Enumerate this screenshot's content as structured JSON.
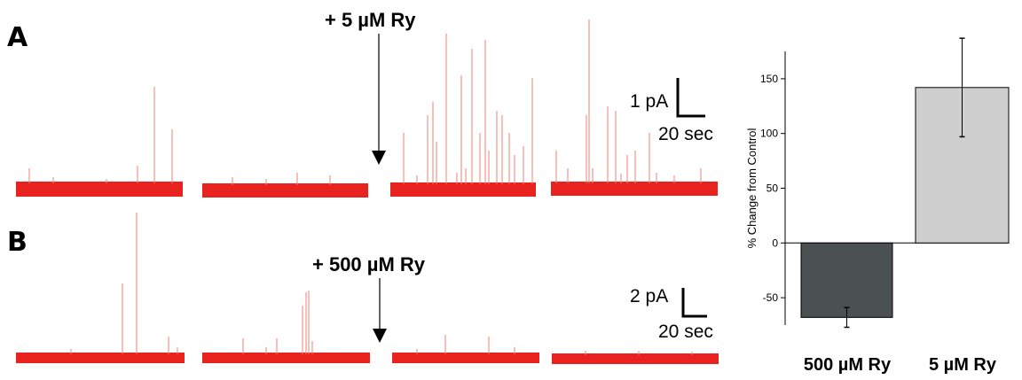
{
  "panels": {
    "a": {
      "letter": "A",
      "treatment_label": "+ 5 µM Ry",
      "scale_current": "1 pA",
      "scale_time": "20 sec"
    },
    "b": {
      "letter": "B",
      "treatment_label": "+ 500 µM Ry",
      "scale_current": "2 pA",
      "scale_time": "20 sec"
    }
  },
  "trace_color": "#e8221f",
  "chart_data": {
    "type": "bar",
    "categories": [
      "500 µM Ry",
      "5 µM Ry"
    ],
    "values": [
      -68,
      142
    ],
    "errors": [
      9,
      45
    ],
    "colors": [
      "#4a5150",
      "#cfcfcf"
    ],
    "ylabel": "% Change from Control",
    "ylim": [
      -75,
      175
    ],
    "yticks": [
      -50,
      0,
      50,
      100,
      150
    ],
    "grid": false
  }
}
